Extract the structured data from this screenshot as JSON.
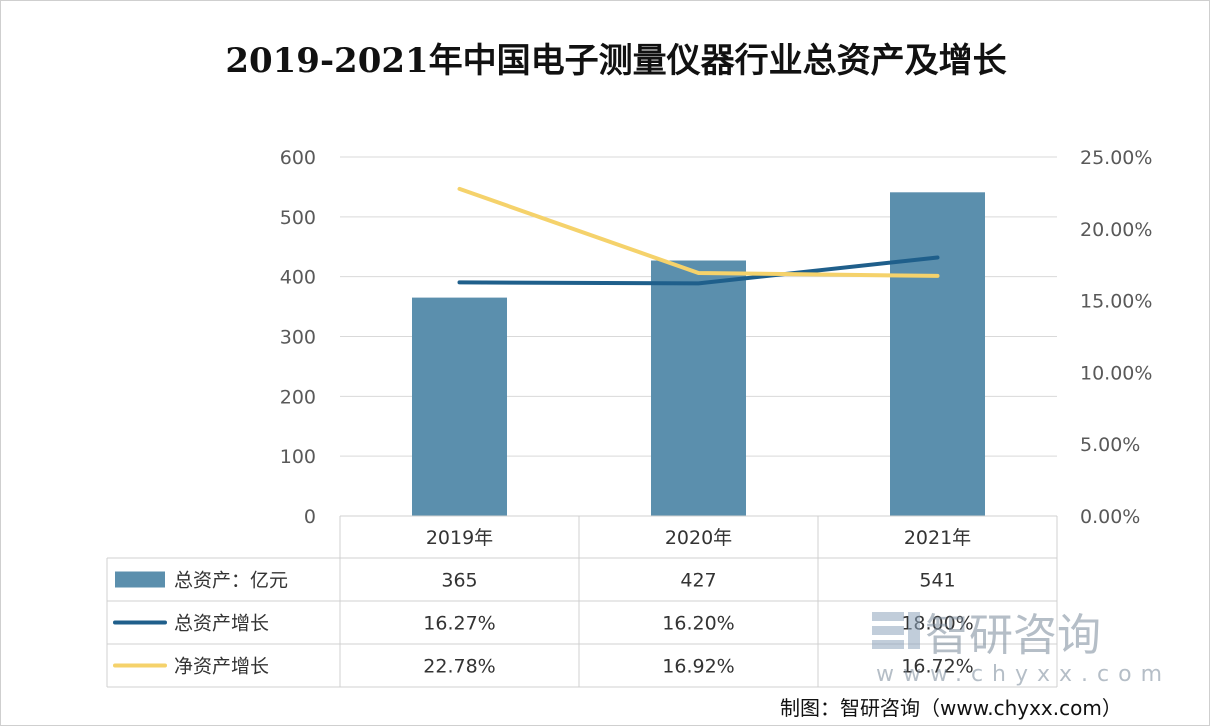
{
  "chart_data": {
    "type": "bar+line",
    "title": "2019-2021年中国电子测量仪器行业总资产及增长",
    "categories": [
      "2019年",
      "2020年",
      "2021年"
    ],
    "left_axis": {
      "ylim": [
        0,
        600
      ],
      "ticks": [
        "0",
        "100",
        "200",
        "300",
        "400",
        "500",
        "600"
      ]
    },
    "right_axis": {
      "ylim": [
        0,
        25
      ],
      "ticks": [
        "0.00%",
        "5.00%",
        "10.00%",
        "15.00%",
        "20.00%",
        "25.00%"
      ]
    },
    "grid": true,
    "series": [
      {
        "name": "总资产：亿元",
        "type": "bar",
        "axis": "left",
        "values": [
          365,
          427,
          541
        ],
        "labels": [
          "365",
          "427",
          "541"
        ],
        "color": "#5b8fad"
      },
      {
        "name": "总资产增长",
        "type": "line",
        "axis": "right",
        "values": [
          16.27,
          16.2,
          18.0
        ],
        "labels": [
          "16.27%",
          "16.20%",
          "18.00%"
        ],
        "color": "#1f5f8b"
      },
      {
        "name": "净资产增长",
        "type": "line",
        "axis": "right",
        "values": [
          22.78,
          16.92,
          16.72
        ],
        "labels": [
          "22.78%",
          "16.92%",
          "16.72%"
        ],
        "color": "#f5d26b"
      }
    ],
    "legend": "data-table"
  },
  "watermark": {
    "brand": "智研咨询",
    "url": "www.chyxx.com"
  },
  "credit": "制图：智研咨询（www.chyxx.com）"
}
